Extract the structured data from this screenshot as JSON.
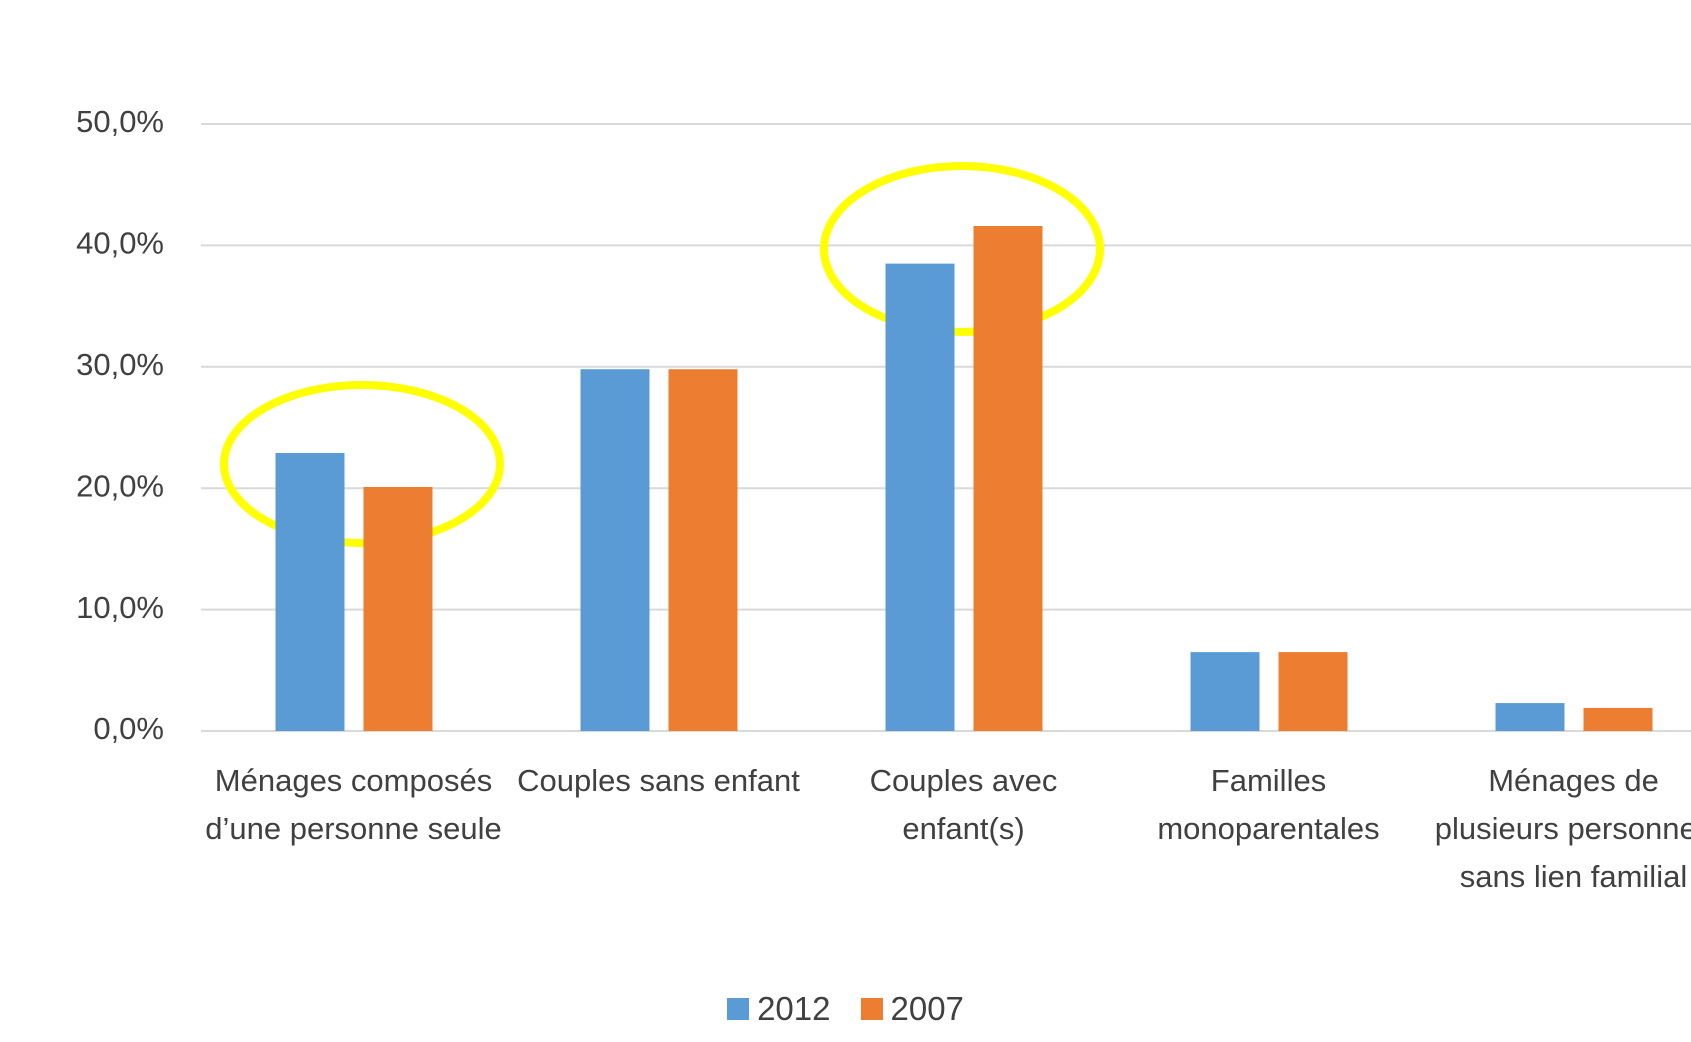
{
  "chart_data": {
    "type": "bar",
    "categories": [
      "Ménages composés d’une personne seule",
      "Couples sans enfant",
      "Couples avec enfant(s)",
      "Familles monoparentales",
      "Ménages de plusieurs personnes sans lien familial"
    ],
    "series": [
      {
        "name": "2012",
        "color": "#5b9bd5",
        "values": [
          22.9,
          29.8,
          38.5,
          6.5,
          2.3
        ]
      },
      {
        "name": "2007",
        "color": "#ed7d31",
        "values": [
          20.1,
          29.8,
          41.6,
          6.5,
          1.9
        ]
      }
    ],
    "ylim": [
      0,
      50
    ],
    "yticks": [
      {
        "value": 0,
        "label": "0,0%"
      },
      {
        "value": 10,
        "label": "10,0%"
      },
      {
        "value": 20,
        "label": "20,0%"
      },
      {
        "value": 30,
        "label": "30,0%"
      },
      {
        "value": 40,
        "label": "40,0%"
      },
      {
        "value": 50,
        "label": "50,0%"
      }
    ],
    "grid": true,
    "legend": "bottom"
  }
}
